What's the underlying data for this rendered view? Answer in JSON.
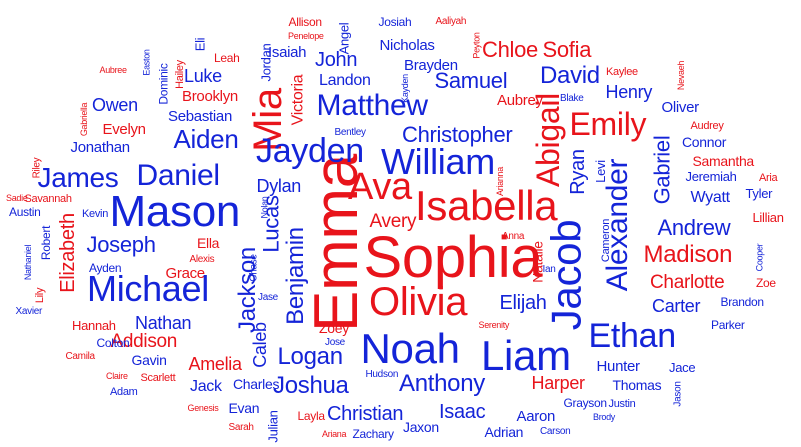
{
  "colors": {
    "boy": "#1424d8",
    "girl": "#e8141b"
  },
  "words": [
    {
      "text": "Sophia",
      "g": "girl"
    },
    {
      "text": "Emma",
      "g": "girl"
    },
    {
      "text": "Olivia",
      "g": "girl"
    },
    {
      "text": "Isabella",
      "g": "girl"
    },
    {
      "text": "Ava",
      "g": "girl"
    },
    {
      "text": "Emily",
      "g": "girl"
    },
    {
      "text": "Abigail",
      "g": "girl"
    },
    {
      "text": "Mia",
      "g": "girl"
    },
    {
      "text": "Madison",
      "g": "girl"
    },
    {
      "text": "Chloe",
      "g": "girl"
    },
    {
      "text": "Sofia",
      "g": "girl"
    },
    {
      "text": "Elizabeth",
      "g": "girl"
    },
    {
      "text": "Charlotte",
      "g": "girl"
    },
    {
      "text": "Addison",
      "g": "girl"
    },
    {
      "text": "Amelia",
      "g": "girl"
    },
    {
      "text": "Avery",
      "g": "girl"
    },
    {
      "text": "Harper",
      "g": "girl"
    },
    {
      "text": "Evelyn",
      "g": "girl"
    },
    {
      "text": "Brooklyn",
      "g": "girl"
    },
    {
      "text": "Aubrey",
      "g": "girl"
    },
    {
      "text": "Samantha",
      "g": "girl"
    },
    {
      "text": "Natalie",
      "g": "girl"
    },
    {
      "text": "Grace",
      "g": "girl"
    },
    {
      "text": "Ella",
      "g": "girl"
    },
    {
      "text": "Hannah",
      "g": "girl"
    },
    {
      "text": "Victoria",
      "g": "girl"
    },
    {
      "text": "Lillian",
      "g": "girl"
    },
    {
      "text": "Zoey",
      "g": "girl"
    },
    {
      "text": "Zoe",
      "g": "girl"
    },
    {
      "text": "Layla",
      "g": "girl"
    },
    {
      "text": "Leah",
      "g": "girl"
    },
    {
      "text": "Allison",
      "g": "girl"
    },
    {
      "text": "Aaliyah",
      "g": "girl"
    },
    {
      "text": "Kaylee",
      "g": "girl"
    },
    {
      "text": "Nevaeh",
      "g": "girl"
    },
    {
      "text": "Audrey",
      "g": "girl"
    },
    {
      "text": "Aria",
      "g": "girl"
    },
    {
      "text": "Savannah",
      "g": "girl"
    },
    {
      "text": "Sadie",
      "g": "girl"
    },
    {
      "text": "Riley",
      "g": "girl"
    },
    {
      "text": "Gabriella",
      "g": "girl"
    },
    {
      "text": "Aubree",
      "g": "girl"
    },
    {
      "text": "Hailey",
      "g": "girl"
    },
    {
      "text": "Penelope",
      "g": "girl"
    },
    {
      "text": "Peyton",
      "g": "girl"
    },
    {
      "text": "Arianna",
      "g": "girl"
    },
    {
      "text": "Anna",
      "g": "girl"
    },
    {
      "text": "Alexis",
      "g": "girl"
    },
    {
      "text": "Lily",
      "g": "girl"
    },
    {
      "text": "Camila",
      "g": "girl"
    },
    {
      "text": "Claire",
      "g": "girl"
    },
    {
      "text": "Scarlett",
      "g": "girl"
    },
    {
      "text": "Genesis",
      "g": "girl"
    },
    {
      "text": "Sarah",
      "g": "girl"
    },
    {
      "text": "Ariana",
      "g": "girl"
    },
    {
      "text": "Serenity",
      "g": "girl"
    },
    {
      "text": "Noah",
      "g": "boy"
    },
    {
      "text": "Liam",
      "g": "boy"
    },
    {
      "text": "Mason",
      "g": "boy"
    },
    {
      "text": "Jacob",
      "g": "boy"
    },
    {
      "text": "William",
      "g": "boy"
    },
    {
      "text": "Ethan",
      "g": "boy"
    },
    {
      "text": "Michael",
      "g": "boy"
    },
    {
      "text": "Alexander",
      "g": "boy"
    },
    {
      "text": "Jayden",
      "g": "boy"
    },
    {
      "text": "Daniel",
      "g": "boy"
    },
    {
      "text": "Matthew",
      "g": "boy"
    },
    {
      "text": "Aiden",
      "g": "boy"
    },
    {
      "text": "James",
      "g": "boy"
    },
    {
      "text": "Jackson",
      "g": "boy"
    },
    {
      "text": "Joseph",
      "g": "boy"
    },
    {
      "text": "Benjamin",
      "g": "boy"
    },
    {
      "text": "Anthony",
      "g": "boy"
    },
    {
      "text": "Logan",
      "g": "boy"
    },
    {
      "text": "Joshua",
      "g": "boy"
    },
    {
      "text": "Andrew",
      "g": "boy"
    },
    {
      "text": "Christopher",
      "g": "boy"
    },
    {
      "text": "Elijah",
      "g": "boy"
    },
    {
      "text": "Samuel",
      "g": "boy"
    },
    {
      "text": "David",
      "g": "boy"
    },
    {
      "text": "Gabriel",
      "g": "boy"
    },
    {
      "text": "Lucas",
      "g": "boy"
    },
    {
      "text": "Nathan",
      "g": "boy"
    },
    {
      "text": "John",
      "g": "boy"
    },
    {
      "text": "Ryan",
      "g": "boy"
    },
    {
      "text": "Christian",
      "g": "boy"
    },
    {
      "text": "Isaac",
      "g": "boy"
    },
    {
      "text": "Dylan",
      "g": "boy"
    },
    {
      "text": "Henry",
      "g": "boy"
    },
    {
      "text": "Luke",
      "g": "boy"
    },
    {
      "text": "Owen",
      "g": "boy"
    },
    {
      "text": "Carter",
      "g": "boy"
    },
    {
      "text": "Caleb",
      "g": "boy"
    },
    {
      "text": "Landon",
      "g": "boy"
    },
    {
      "text": "Isaiah",
      "g": "boy"
    },
    {
      "text": "Nicholas",
      "g": "boy"
    },
    {
      "text": "Brayden",
      "g": "boy"
    },
    {
      "text": "Jonathan",
      "g": "boy"
    },
    {
      "text": "Hunter",
      "g": "boy"
    },
    {
      "text": "Jack",
      "g": "boy"
    },
    {
      "text": "Wyatt",
      "g": "boy"
    },
    {
      "text": "Connor",
      "g": "boy"
    },
    {
      "text": "Jeremiah",
      "g": "boy"
    },
    {
      "text": "Oliver",
      "g": "boy"
    },
    {
      "text": "Sebastian",
      "g": "boy"
    },
    {
      "text": "Gavin",
      "g": "boy"
    },
    {
      "text": "Evan",
      "g": "boy"
    },
    {
      "text": "Charles",
      "g": "boy"
    },
    {
      "text": "Aaron",
      "g": "boy"
    },
    {
      "text": "Thomas",
      "g": "boy"
    },
    {
      "text": "Adrian",
      "g": "boy"
    },
    {
      "text": "Jaxon",
      "g": "boy"
    },
    {
      "text": "Zachary",
      "g": "boy"
    },
    {
      "text": "Julian",
      "g": "boy"
    },
    {
      "text": "Tyler",
      "g": "boy"
    },
    {
      "text": "Levi",
      "g": "boy"
    },
    {
      "text": "Cameron",
      "g": "boy"
    },
    {
      "text": "Jordan",
      "g": "boy"
    },
    {
      "text": "Angel",
      "g": "boy"
    },
    {
      "text": "Josiah",
      "g": "boy"
    },
    {
      "text": "Eli",
      "g": "boy"
    },
    {
      "text": "Dominic",
      "g": "boy"
    },
    {
      "text": "Easton",
      "g": "boy"
    },
    {
      "text": "Kayden",
      "g": "boy"
    },
    {
      "text": "Blake",
      "g": "boy"
    },
    {
      "text": "Bentley",
      "g": "boy"
    },
    {
      "text": "Austin",
      "g": "boy"
    },
    {
      "text": "Kevin",
      "g": "boy"
    },
    {
      "text": "Robert",
      "g": "boy"
    },
    {
      "text": "Nathaniel",
      "g": "boy"
    },
    {
      "text": "Ayden",
      "g": "boy"
    },
    {
      "text": "Xavier",
      "g": "boy"
    },
    {
      "text": "Colton",
      "g": "boy"
    },
    {
      "text": "Adam",
      "g": "boy"
    },
    {
      "text": "Chase",
      "g": "boy"
    },
    {
      "text": "Nolan",
      "g": "boy"
    },
    {
      "text": "Jase",
      "g": "boy"
    },
    {
      "text": "Jose",
      "g": "boy"
    },
    {
      "text": "Hudson",
      "g": "boy"
    },
    {
      "text": "Ian",
      "g": "boy"
    },
    {
      "text": "Jace",
      "g": "boy"
    },
    {
      "text": "Jason",
      "g": "boy"
    },
    {
      "text": "Justin",
      "g": "boy"
    },
    {
      "text": "Brody",
      "g": "boy"
    },
    {
      "text": "Grayson",
      "g": "boy"
    },
    {
      "text": "Carson",
      "g": "boy"
    },
    {
      "text": "Parker",
      "g": "boy"
    },
    {
      "text": "Brandon",
      "g": "boy"
    },
    {
      "text": "Cooper",
      "g": "boy"
    }
  ]
}
